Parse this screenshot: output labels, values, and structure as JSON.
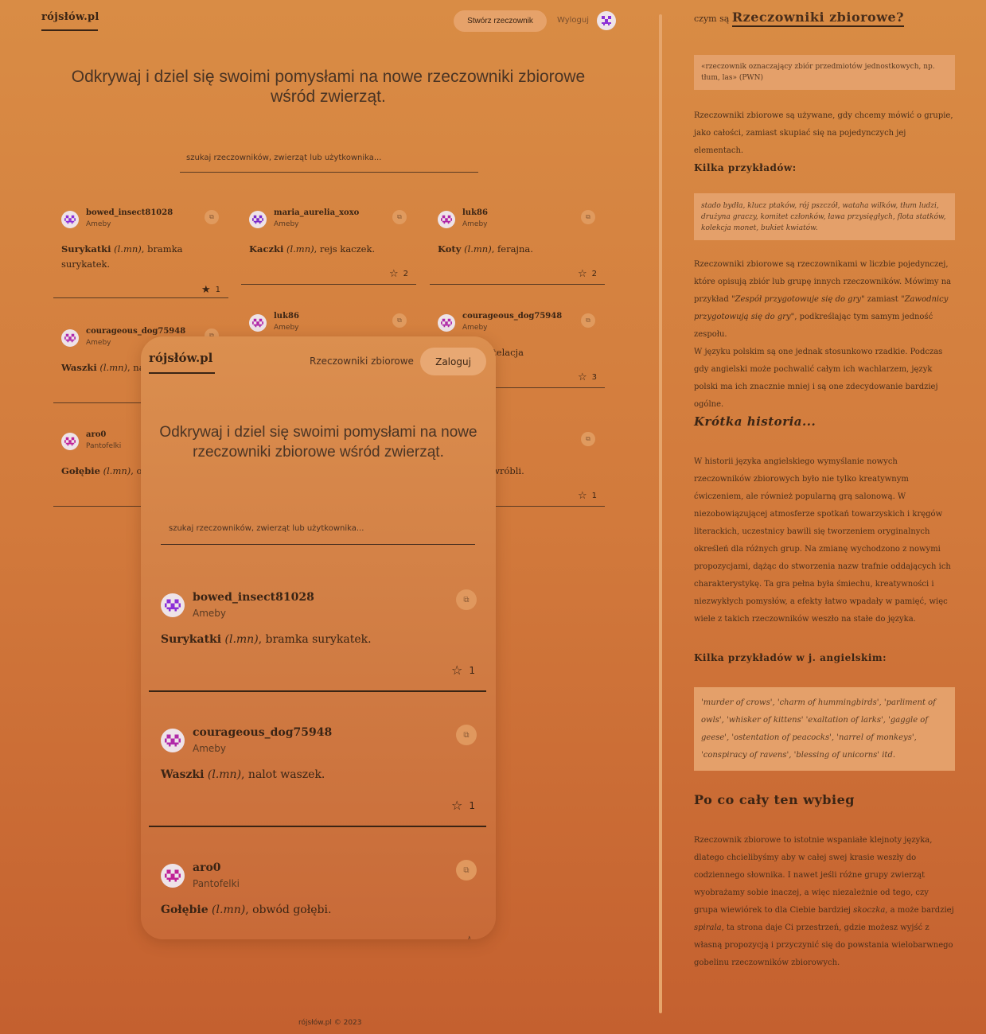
{
  "header": {
    "logo": "rójsłów.pl",
    "create_button": "Stwórz rzeczownik",
    "logout": "Wyloguj"
  },
  "hero": "Odkrywaj i dziel się swoimi pomysłami na nowe rzeczowniki zbiorowe wśród zwierząt.",
  "search": {
    "placeholder": "szukaj rzeczowników, zwierząt lub użytkownika..."
  },
  "cards": [
    {
      "user": "bowed_insect81028",
      "group": "Ameby",
      "animal": "Surykatki",
      "abbr": "(l.mn)",
      "rest": ", bramka surykatek.",
      "stars": "1",
      "starred": true,
      "avatar_color": "#8d2fd6"
    },
    {
      "user": "maria_aurelia_xoxo",
      "group": "Ameby",
      "animal": "Kaczki",
      "abbr": "(l.mn)",
      "rest": ", rejs kaczek.",
      "stars": "2",
      "starred": false,
      "avatar_color": "#7a28c8"
    },
    {
      "user": "luk86",
      "group": "Ameby",
      "animal": "Koty",
      "abbr": "(l.mn)",
      "rest": ", ferajna.",
      "stars": "2",
      "starred": false,
      "avatar_color": "#b024a6"
    },
    {
      "user": "courageous_dog75948",
      "group": "Ameby",
      "animal": "Waszki",
      "abbr": "(l.mn)",
      "rest": ", nalot waszek.",
      "stars": "",
      "starred": false,
      "avatar_color": "#b02aa8"
    },
    {
      "user": "luk86",
      "group": "Ameby",
      "animal": "",
      "abbr": "",
      "rest": "",
      "stars": "",
      "starred": false,
      "avatar_color": "#b024a6"
    },
    {
      "user": "courageous_dog75948",
      "group": "Ameby",
      "animal": "",
      "abbr": "(l.mn)",
      "rest": ", konstelacja",
      "stars": "3",
      "starred": false,
      "avatar_color": "#b02aa8"
    },
    {
      "user": "aro0",
      "group": "Pantofelki",
      "animal": "Gołębie",
      "abbr": "(l.mn)",
      "rest": ", ob",
      "stars": "",
      "starred": false,
      "avatar_color": "#c02296"
    },
    {
      "user": "",
      "group": "",
      "animal": "",
      "abbr": "",
      "rest": "), kiermasz wróbli.",
      "stars": "1",
      "starred": false,
      "avatar_color": "#c02296"
    }
  ],
  "mobile": {
    "logo": "rójsłów.pl",
    "nav_link": "Rzeczowniki zbiorowe",
    "login": "Zaloguj",
    "hero": "Odkrywaj i dziel się swoimi pomysłami na nowe rzeczowniki zbiorowe wśród zwierząt.",
    "search_placeholder": "szukaj rzeczowników, zwierząt lub użytkownika...",
    "cards": [
      {
        "user": "bowed_insect81028",
        "group": "Ameby",
        "animal": "Surykatki",
        "abbr": "(l.mn)",
        "rest": ", bramka surykatek.",
        "stars": "1"
      },
      {
        "user": "courageous_dog75948",
        "group": "Ameby",
        "animal": "Waszki",
        "abbr": "(l.mn)",
        "rest": ", nalot waszek.",
        "stars": "1"
      },
      {
        "user": "aro0",
        "group": "Pantofelki",
        "animal": "Gołębie",
        "abbr": "(l.mn)",
        "rest": ", obwód gołębi.",
        "stars": ""
      }
    ]
  },
  "sidebar": {
    "question_prefix": "czym są",
    "question_title": "Rzeczowniki zbiorowe?",
    "definition": "«rzeczownik oznaczający zbiór przedmiotów jednostkowych, np. tłum, las» (PWN)",
    "p1": "Rzeczowniki zbiorowe są używane, gdy chcemy mówić o grupie, jako całości, zamiast skupiać się na pojedynczych jej elementach.",
    "examples_title": "Kilka przykładów:",
    "examples": "stado bydła, klucz ptaków, rój pszczół, wataha wilków, tłum ludzi, drużyna graczy, komitet członków, ława przysięgłych, flota statków, kolekcja monet, bukiet kwiatów.",
    "p2_a": "Rzeczowniki zbiorowe są rzeczownikami w liczbie pojedynczej, które opisują zbiór lub grupę innych rzeczowników. Mówimy na przykład ",
    "p2_q1": "\"Zespół przygotowuje się do gry\"",
    "p2_b": " zamiast ",
    "p2_q2": "\"Zawodnicy przygotowują się do gry\"",
    "p2_c": ", podkreślając tym samym jedność zespołu.",
    "p3": "W języku polskim są one jednak stosunkowo rzadkie. Podczas gdy angielski może pochwalić całym ich wachlarzem, język polski ma ich znacznie mniej i są one zdecydowanie bardziej ogólne.",
    "history_title": "Krótka historia...",
    "history": "W historii języka angielskiego wymyślanie nowych rzeczowników zbiorowych było nie tylko kreatywnym ćwiczeniem, ale również popularną grą salonową. W niezobowiązującej atmosferze spotkań towarzyskich i kręgów literackich, uczestnicy bawili się tworzeniem oryginalnych określeń dla różnych grup. Na zmianę wychodzono z nowymi propozycjami, dążąc do stworzenia nazw trafnie oddających ich charakterystykę. Ta gra pełna była śmiechu, kreatywności i niezwykłych pomysłów, a efekty łatwo wpadały w pamięć, więc wiele z takich rzeczowników weszło na stałe do języka.",
    "english_title": "Kilka przykładów w j. angielskim:",
    "english_examples": "'murder of crows', 'charm of hummingbirds', 'parliment of owls', 'whisker of kittens' 'exaltation of larks', 'gaggle of geese', 'ostentation of peacocks', 'narrel of monkeys', 'conspiracy of ravens', 'blessing of unicorns' itd.",
    "why_title": "Po co cały ten wybieg",
    "why_a": "Rzeczownik zbiorowe to istotnie wspaniałe klejnoty języka, dlatego chcielibyśmy aby w całej swej krasie weszły do codziennego słownika. I nawet jeśli różne grupy zwierząt wyobrażamy sobie inaczej, a więc niezależnie od tego, czy grupa wiewiórek to dla Ciebie bardziej ",
    "why_i1": "skoczka",
    "why_b": ", a może bardziej ",
    "why_i2": "spirala",
    "why_c": ", ta strona daje Ci przestrzeń, gdzie możesz wyjść z własną propozycją i przyczynić się do powstania wielobarwnego gobelinu rzeczowników zbiorowych."
  },
  "footer": "rójsłów.pl © 2023"
}
